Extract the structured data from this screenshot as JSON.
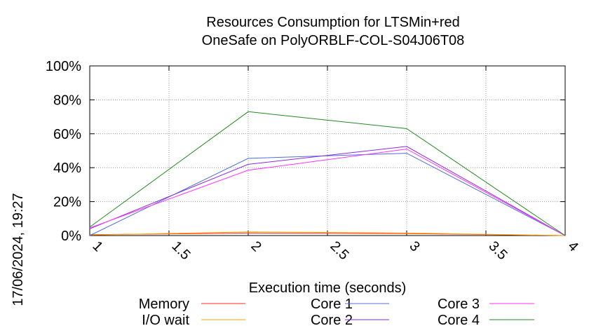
{
  "timestamp": "17/06/2024, 19:27",
  "chart_data": {
    "type": "line",
    "title": [
      "Resources Consumption for LTSMin+red",
      "OneSafe on PolyORBLF-COL-S04J06T08"
    ],
    "xlabel": "Execution time (seconds)",
    "ylabel": "",
    "xlim": [
      1,
      4
    ],
    "ylim": [
      0,
      100
    ],
    "xticks": [
      1,
      1.5,
      2,
      2.5,
      3,
      3.5,
      4
    ],
    "xtick_labels": [
      "1",
      "1.5",
      "2",
      "2.5",
      "3",
      "3.5",
      "4"
    ],
    "yticks": [
      0,
      20,
      40,
      60,
      80,
      100
    ],
    "ytick_labels": [
      "0%",
      "20%",
      "40%",
      "60%",
      "80%",
      "100%"
    ],
    "grid": true,
    "legend_position": "bottom",
    "x": [
      1,
      2,
      3,
      4
    ],
    "series": [
      {
        "name": "Memory",
        "color": "#ff2a1a",
        "values": [
          0.5,
          1.5,
          1.2,
          0
        ]
      },
      {
        "name": "I/O wait",
        "color": "#ffa500",
        "values": [
          0.3,
          2.2,
          1.5,
          0
        ]
      },
      {
        "name": "Core 1",
        "color": "#4f6fd8",
        "values": [
          0,
          45.5,
          48.5,
          0
        ]
      },
      {
        "name": "Core 2",
        "color": "#8a2be2",
        "values": [
          4,
          42,
          52.5,
          0
        ]
      },
      {
        "name": "Core 3",
        "color": "#ff33ff",
        "values": [
          4.5,
          38.5,
          51,
          0
        ]
      },
      {
        "name": "Core 4",
        "color": "#228b22",
        "values": [
          5,
          73,
          63,
          0
        ]
      }
    ]
  }
}
